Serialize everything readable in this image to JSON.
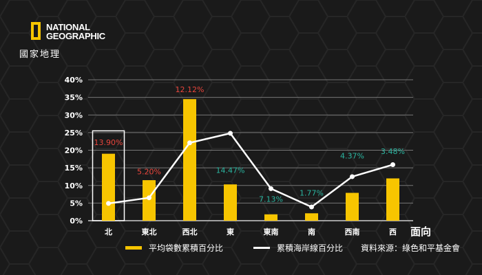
{
  "brand": {
    "name_line1": "NATIONAL",
    "name_line2": "GEOGRAPHIC",
    "subtitle": "國家地理"
  },
  "colors": {
    "background": "#1a1a1a",
    "bar": "#f7c500",
    "line": "#ffffff",
    "label_red": "#e8453c",
    "label_teal": "#2bb5a0",
    "grid": "#777777"
  },
  "source": "資料來源：綠色和平基金會",
  "chart_data": {
    "type": "bar",
    "categories": [
      "北",
      "東北",
      "西北",
      "東",
      "東南",
      "南",
      "西南",
      "西"
    ],
    "xlabel": "面向",
    "ylabel": "",
    "ylim": [
      0,
      40
    ],
    "yticks": [
      "0%",
      "5%",
      "10%",
      "15%",
      "20%",
      "25%",
      "30%",
      "35%",
      "40%"
    ],
    "grid": true,
    "legend_position": "bottom",
    "series": [
      {
        "name": "平均袋數累積百分比",
        "kind": "bar",
        "values": [
          19,
          11.5,
          34.5,
          10.3,
          1.8,
          2.1,
          7.9,
          12.0
        ]
      },
      {
        "name": "累積海岸線百分比",
        "kind": "line",
        "values": [
          4.9,
          6.5,
          22.1,
          24.8,
          9.1,
          3.9,
          12.5,
          15.9
        ]
      }
    ],
    "annotations": [
      {
        "text": "13.90%",
        "color": "red",
        "category": "北",
        "y": 21.5
      },
      {
        "text": "5.20%",
        "color": "red",
        "category": "東北",
        "y": 13.2
      },
      {
        "text": "12.12%",
        "color": "red",
        "category": "西北",
        "y": 36.5
      },
      {
        "text": "14.47%",
        "color": "teal",
        "category": "東",
        "y": 13.6
      },
      {
        "text": "7.13%",
        "color": "teal",
        "category": "東南",
        "y": 5.4
      },
      {
        "text": "1.77%",
        "color": "teal",
        "category": "南",
        "y": 7.1
      },
      {
        "text": "4.37%",
        "color": "teal",
        "category": "西南",
        "y": 17.7
      },
      {
        "text": "3.48%",
        "color": "teal",
        "category": "西",
        "y": 18.9
      }
    ],
    "highlight_category": "北"
  }
}
